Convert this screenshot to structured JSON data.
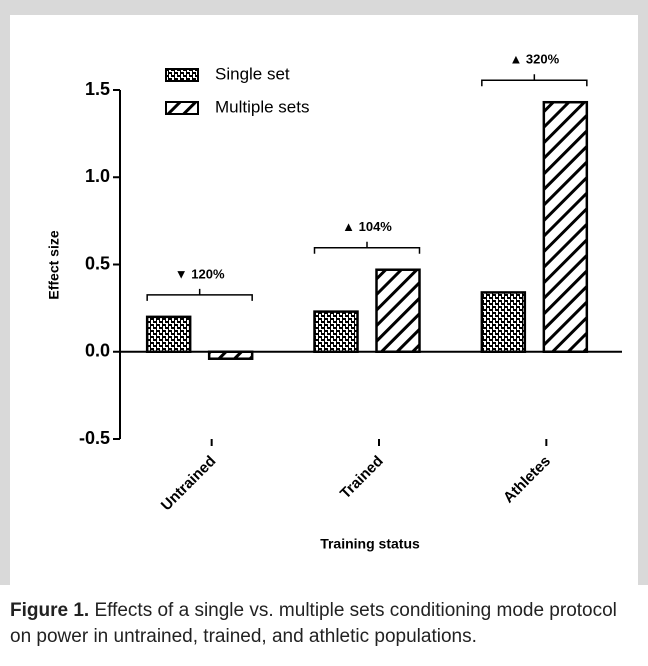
{
  "chart_data": {
    "type": "bar",
    "categories": [
      "Untrained",
      "Trained",
      "Athletes"
    ],
    "series": [
      {
        "name": "Single set",
        "color": "#000000",
        "values": [
          0.2,
          0.23,
          0.34
        ]
      },
      {
        "name": "Multiple sets",
        "color": "#000000",
        "values": [
          -0.04,
          0.47,
          1.43
        ]
      }
    ],
    "annotations": [
      "▼ 120%",
      "▲ 104%",
      "▲ 320%"
    ],
    "xlabel": "Training status",
    "ylabel": "Effect size",
    "ylim": [
      -0.5,
      1.5
    ],
    "yticks": [
      -0.5,
      {
        "value": 0,
        "label": "0.0"
      },
      0.5,
      {
        "value": 1,
        "label": "1.0"
      },
      1.5
    ],
    "legend": "top-left",
    "caption_label": "Figure 1.",
    "caption": "Effects of a single vs. multiple sets conditioning mode protocol on power in untrained, trained, and athletic populations."
  }
}
